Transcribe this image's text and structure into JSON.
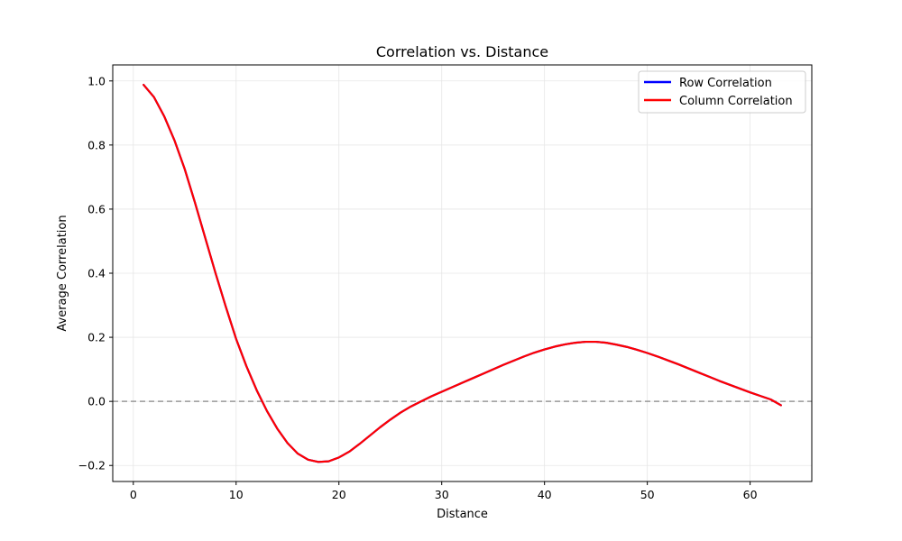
{
  "chart_data": {
    "type": "line",
    "title": "Correlation vs. Distance",
    "xlabel": "Distance",
    "ylabel": "Average Correlation",
    "xlim": [
      -2,
      66
    ],
    "ylim": [
      -0.25,
      1.05
    ],
    "xticks": [
      0,
      10,
      20,
      30,
      40,
      50,
      60
    ],
    "yticks": [
      -0.2,
      0.0,
      0.2,
      0.4,
      0.6,
      0.8,
      1.0
    ],
    "ytick_labels": [
      "−0.2",
      "0.0",
      "0.2",
      "0.4",
      "0.6",
      "0.8",
      "1.0"
    ],
    "grid": true,
    "legend_position": "top-right",
    "reference_line": {
      "y": 0,
      "color": "#999999",
      "style": "dashed"
    },
    "x": [
      1,
      2,
      3,
      4,
      5,
      6,
      7,
      8,
      9,
      10,
      11,
      12,
      13,
      14,
      15,
      16,
      17,
      18,
      19,
      20,
      21,
      22,
      23,
      24,
      25,
      26,
      27,
      28,
      29,
      30,
      31,
      32,
      33,
      34,
      35,
      36,
      37,
      38,
      39,
      40,
      41,
      42,
      43,
      44,
      45,
      46,
      47,
      48,
      49,
      50,
      51,
      52,
      53,
      54,
      55,
      56,
      57,
      58,
      59,
      60,
      61,
      62,
      63
    ],
    "series": [
      {
        "name": "Row Correlation",
        "color": "#0000ff",
        "values": [
          0.988,
          0.95,
          0.89,
          0.815,
          0.725,
          0.62,
          0.51,
          0.4,
          0.295,
          0.195,
          0.11,
          0.035,
          -0.03,
          -0.085,
          -0.13,
          -0.163,
          -0.182,
          -0.189,
          -0.187,
          -0.175,
          -0.157,
          -0.133,
          -0.107,
          -0.081,
          -0.057,
          -0.035,
          -0.016,
          0.0,
          0.016,
          0.03,
          0.044,
          0.058,
          0.072,
          0.086,
          0.1,
          0.114,
          0.127,
          0.14,
          0.152,
          0.162,
          0.171,
          0.178,
          0.183,
          0.186,
          0.186,
          0.183,
          0.177,
          0.17,
          0.161,
          0.151,
          0.14,
          0.128,
          0.116,
          0.103,
          0.09,
          0.077,
          0.064,
          0.052,
          0.04,
          0.028,
          0.017,
          0.006,
          -0.012
        ]
      },
      {
        "name": "Column Correlation",
        "color": "#ff0000",
        "values": [
          0.988,
          0.95,
          0.89,
          0.815,
          0.725,
          0.62,
          0.51,
          0.4,
          0.295,
          0.195,
          0.11,
          0.035,
          -0.03,
          -0.085,
          -0.13,
          -0.163,
          -0.182,
          -0.189,
          -0.187,
          -0.175,
          -0.157,
          -0.133,
          -0.107,
          -0.081,
          -0.057,
          -0.035,
          -0.016,
          0.0,
          0.016,
          0.03,
          0.044,
          0.058,
          0.072,
          0.086,
          0.1,
          0.114,
          0.127,
          0.14,
          0.152,
          0.162,
          0.171,
          0.178,
          0.183,
          0.186,
          0.186,
          0.183,
          0.177,
          0.17,
          0.161,
          0.151,
          0.14,
          0.128,
          0.116,
          0.103,
          0.09,
          0.077,
          0.064,
          0.052,
          0.04,
          0.028,
          0.017,
          0.006,
          -0.012
        ]
      }
    ]
  }
}
